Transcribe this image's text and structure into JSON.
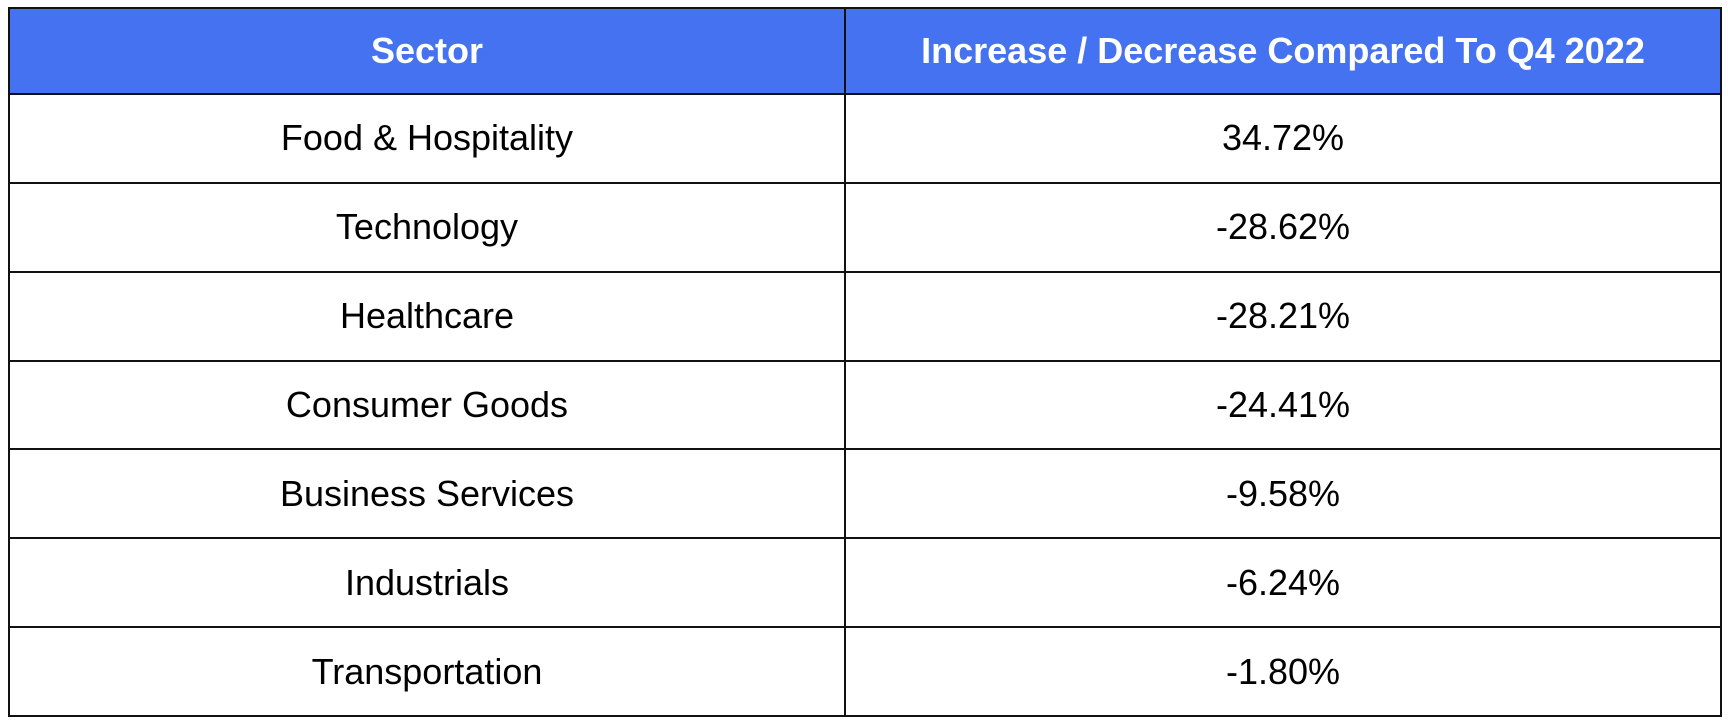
{
  "table": {
    "header_bg": "#4472f0",
    "headers": [
      "Sector",
      "Increase / Decrease Compared To Q4 2022"
    ],
    "rows": [
      {
        "sector": "Food & Hospitality",
        "change": "34.72%"
      },
      {
        "sector": "Technology",
        "change": "-28.62%"
      },
      {
        "sector": "Healthcare",
        "change": "-28.21%"
      },
      {
        "sector": "Consumer Goods",
        "change": "-24.41%"
      },
      {
        "sector": "Business Services",
        "change": "-9.58%"
      },
      {
        "sector": "Industrials",
        "change": "-6.24%"
      },
      {
        "sector": "Transportation",
        "change": "-1.80%"
      }
    ]
  }
}
